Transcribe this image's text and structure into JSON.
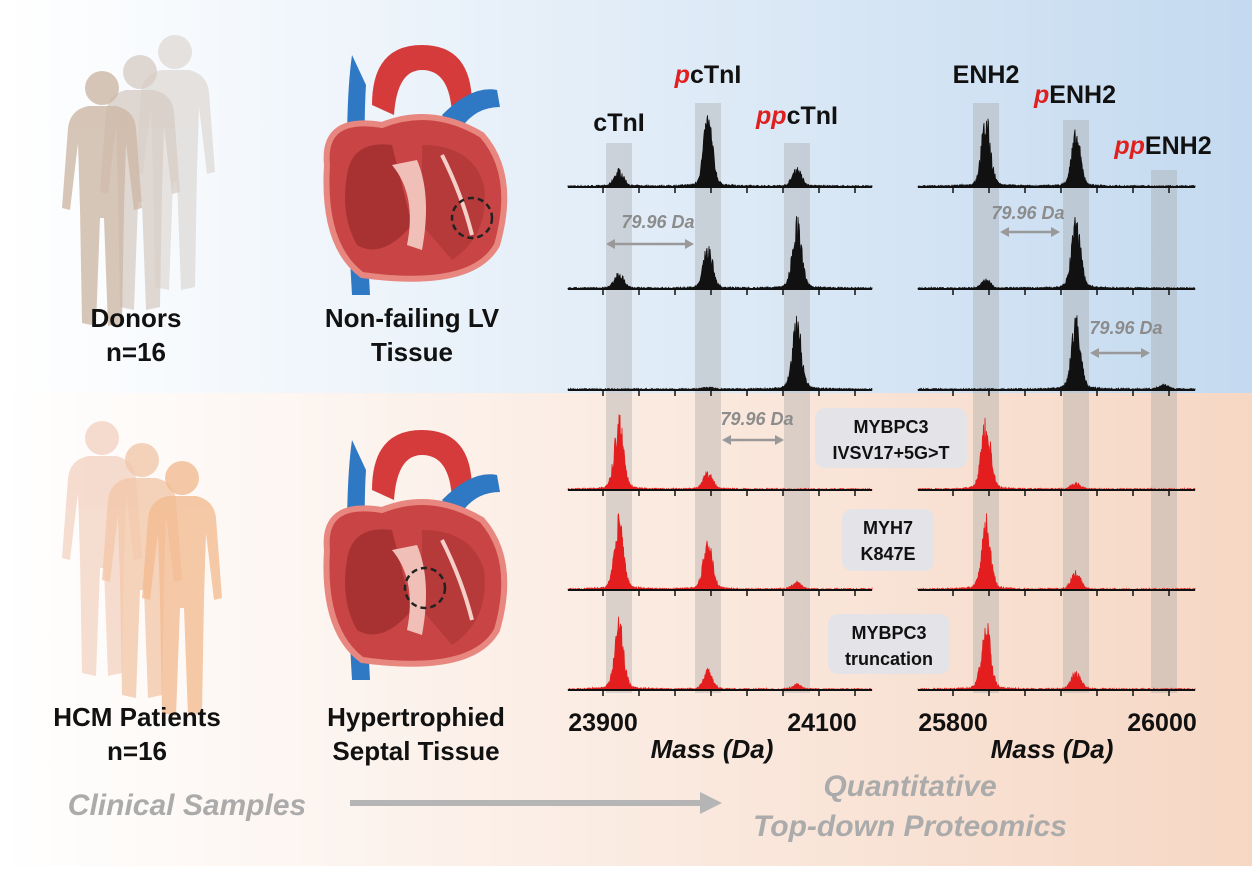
{
  "groups": [
    {
      "subjects": [
        "Donors",
        "n=16"
      ],
      "tissue": [
        "Non-failing LV",
        "Tissue"
      ]
    },
    {
      "subjects": [
        "HCM Patients",
        "n=16"
      ],
      "tissue": [
        "Hypertrophied",
        "Septal Tissue"
      ]
    }
  ],
  "peak_labels": [
    {
      "name": "cTnI"
    },
    {
      "prefix": "p",
      "name": "cTnI"
    },
    {
      "prefix": "pp",
      "name": "cTnI"
    },
    {
      "name": "ENH2"
    },
    {
      "prefix": "p",
      "name": "ENH2"
    },
    {
      "prefix": "pp",
      "name": "ENH2"
    }
  ],
  "mass_shift_labels": [
    "79.96 Da",
    "79.96 Da",
    "79.96 Da",
    "79.96 Da"
  ],
  "mutations": [
    [
      "MYBPC3",
      "IVSV17+5G>T"
    ],
    [
      "MYH7",
      "K847E"
    ],
    [
      "MYBPC3",
      "truncation"
    ]
  ],
  "x_ticks": [
    "23900",
    "24100",
    "25800",
    "26000"
  ],
  "x_axis_labels": [
    "Mass (Da)",
    "Mass (Da)"
  ],
  "footer": {
    "left": "Clinical Samples",
    "right": [
      "Quantitative",
      "Top-down Proteomics"
    ]
  }
}
